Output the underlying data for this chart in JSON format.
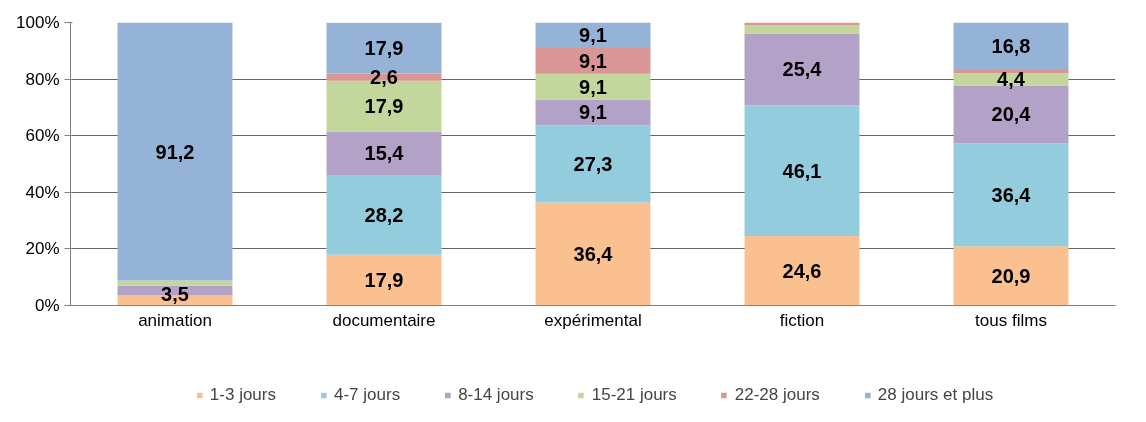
{
  "chart_data": {
    "type": "bar",
    "stacked": true,
    "categories": [
      "animation",
      "documentaire",
      "expérimental",
      "fiction",
      "tous films"
    ],
    "series": [
      {
        "name": "1-3 jours",
        "color": "#fac090",
        "values": [
          3.5,
          17.9,
          36.4,
          24.6,
          20.9
        ],
        "value_labels": [
          "3,5",
          "17,9",
          "36,4",
          "24,6",
          "20,9"
        ]
      },
      {
        "name": "4-7 jours",
        "color": "#93cddd",
        "values": [
          0,
          28.2,
          27.3,
          46.1,
          36.4
        ],
        "value_labels": [
          null,
          "28,2",
          "27,3",
          "46,1",
          "36,4"
        ]
      },
      {
        "name": "8-14 jours",
        "color": "#b3a2c7",
        "values": [
          3.5,
          15.4,
          9.1,
          25.4,
          20.4
        ],
        "value_labels": [
          null,
          "15,4",
          "9,1",
          "25,4",
          "20,4"
        ]
      },
      {
        "name": "15-21 jours",
        "color": "#c3d69b",
        "values": [
          1.8,
          17.9,
          9.1,
          3.0,
          4.4
        ],
        "value_labels": [
          null,
          "17,9",
          "9,1",
          null,
          "4,4"
        ]
      },
      {
        "name": "22-28 jours",
        "color": "#d99694",
        "values": [
          0,
          2.6,
          9.1,
          0.9,
          1.1
        ],
        "value_labels": [
          null,
          "2,6",
          "9,1",
          null,
          null
        ]
      },
      {
        "name": "28 jours et plus",
        "color": "#95b3d7",
        "values": [
          91.2,
          17.9,
          9.1,
          0,
          16.8
        ],
        "value_labels": [
          "91,2",
          "17,9",
          "9,1",
          null,
          "16,8"
        ]
      }
    ],
    "ylim": [
      0,
      100
    ],
    "yticks": [
      {
        "value": 0,
        "label": "0%"
      },
      {
        "value": 20,
        "label": "20%"
      },
      {
        "value": 40,
        "label": "40%"
      },
      {
        "value": 60,
        "label": "60%"
      },
      {
        "value": 80,
        "label": "80%"
      },
      {
        "value": 100,
        "label": "100%"
      }
    ],
    "grid": "y",
    "legend": "bottom"
  }
}
